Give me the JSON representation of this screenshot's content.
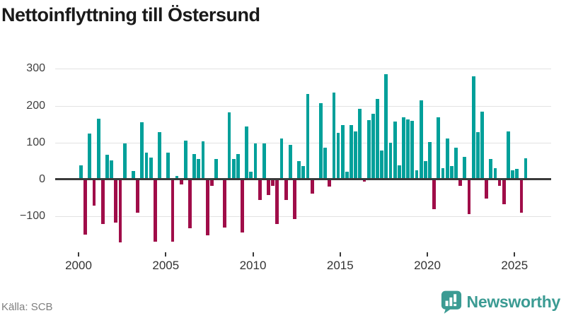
{
  "header": {
    "title": "Nettoinflyttning till Östersund"
  },
  "footer": {
    "source": "Källa: SCB",
    "brand": "Newsworthy",
    "brand_icon": "newsworthy-chart-bubble-icon"
  },
  "colors": {
    "positive_bar": "#00A09A",
    "negative_bar": "#A00D49",
    "brand_teal": "#3B9B93",
    "gridline": "#E2E2E2",
    "zero_line": "#3A3A3A",
    "axis_text": "#404040",
    "title_text": "#1A1A1A",
    "source_text": "#7F7F7F"
  },
  "chart_data": {
    "type": "bar",
    "title": "Nettoinflyttning till Östersund",
    "frequency": "quarterly",
    "xlabel": "",
    "ylabel": "",
    "ylim": [
      -180,
      310
    ],
    "grid": "horizontal",
    "legend": "none",
    "ytick_labels": [
      "300",
      "200",
      "100",
      "0",
      "−100"
    ],
    "ytick_values": [
      300,
      200,
      100,
      0,
      -100
    ],
    "xtick_years": [
      2000,
      2005,
      2010,
      2015,
      2020,
      2025
    ],
    "series": [
      {
        "name": "Nettoinflyttning",
        "years": [
          {
            "year": 2000,
            "quarters": [
              37,
              -150,
              124,
              -72
            ]
          },
          {
            "year": 2001,
            "quarters": [
              165,
              -121,
              66,
              52
            ]
          },
          {
            "year": 2002,
            "quarters": [
              -117,
              -172,
              97,
              2
            ]
          },
          {
            "year": 2003,
            "quarters": [
              23,
              -90,
              155,
              72
            ]
          },
          {
            "year": 2004,
            "quarters": [
              59,
              -169,
              128,
              2
            ]
          },
          {
            "year": 2005,
            "quarters": [
              72,
              -169,
              10,
              -15
            ]
          },
          {
            "year": 2006,
            "quarters": [
              105,
              -133,
              69,
              56
            ]
          },
          {
            "year": 2007,
            "quarters": [
              104,
              -152,
              -17,
              56
            ]
          },
          {
            "year": 2008,
            "quarters": [
              2,
              -131,
              181,
              56
            ]
          },
          {
            "year": 2009,
            "quarters": [
              69,
              -145,
              143,
              21
            ]
          },
          {
            "year": 2010,
            "quarters": [
              98,
              -56,
              98,
              -43
            ]
          },
          {
            "year": 2011,
            "quarters": [
              -18,
              -121,
              111,
              -57
            ]
          },
          {
            "year": 2012,
            "quarters": [
              94,
              -108,
              49,
              36
            ]
          },
          {
            "year": 2013,
            "quarters": [
              232,
              -40,
              2,
              207
            ]
          },
          {
            "year": 2014,
            "quarters": [
              85,
              -20,
              235,
              126
            ]
          },
          {
            "year": 2015,
            "quarters": [
              148,
              20,
              148,
              130
            ]
          },
          {
            "year": 2016,
            "quarters": [
              192,
              -6,
              161,
              178
            ]
          },
          {
            "year": 2017,
            "quarters": [
              218,
              79,
              285,
              99
            ]
          },
          {
            "year": 2018,
            "quarters": [
              157,
              38,
              168,
              162
            ]
          },
          {
            "year": 2019,
            "quarters": [
              159,
              25,
              214,
              50
            ]
          },
          {
            "year": 2020,
            "quarters": [
              101,
              -81,
              169,
              30
            ]
          },
          {
            "year": 2021,
            "quarters": [
              111,
              36,
              85,
              -18
            ]
          },
          {
            "year": 2022,
            "quarters": [
              60,
              -94,
              279,
              128
            ]
          },
          {
            "year": 2023,
            "quarters": [
              184,
              -52,
              55,
              31
            ]
          },
          {
            "year": 2024,
            "quarters": [
              -17,
              -68,
              130,
              25
            ]
          },
          {
            "year": 2025,
            "quarters": [
              28,
              -90,
              57
            ]
          }
        ]
      }
    ]
  }
}
